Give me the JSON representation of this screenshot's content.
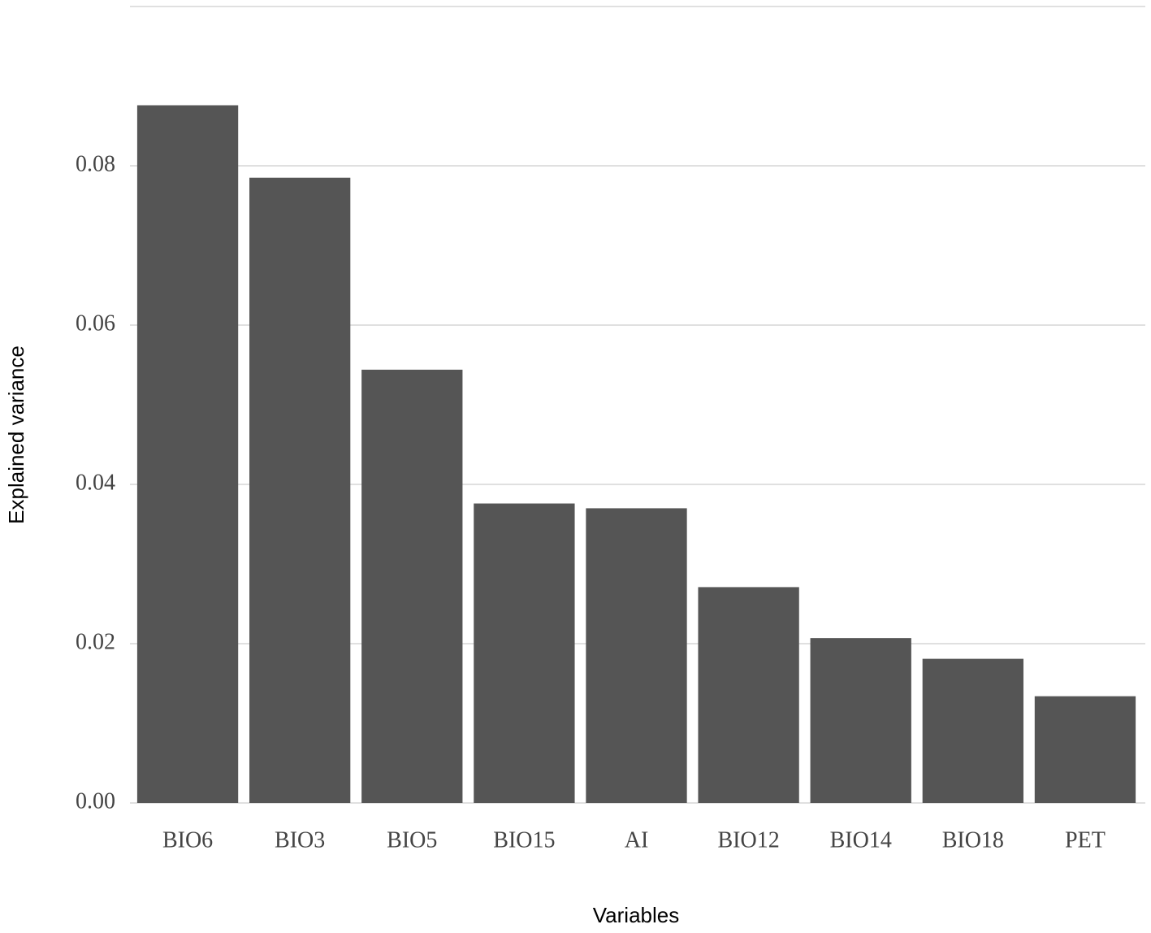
{
  "chart_data": {
    "type": "bar",
    "x_label": "Variables",
    "y_label": "Explained variance",
    "categories": [
      "BIO6",
      "BIO3",
      "BIO5",
      "BIO15",
      "AI",
      "BIO12",
      "BIO14",
      "BIO18",
      "PET"
    ],
    "values": [
      0.0876,
      0.0785,
      0.0544,
      0.0376,
      0.037,
      0.0271,
      0.0207,
      0.0181,
      0.0134
    ],
    "color": "#555555",
    "ylim": [
      0,
      0.1
    ],
    "yticks": [
      {
        "value": 0,
        "label": "0.00"
      },
      {
        "value": 0.02,
        "label": "0.02"
      },
      {
        "value": 0.04,
        "label": "0.04"
      },
      {
        "value": 0.06,
        "label": "0.06"
      },
      {
        "value": 0.08,
        "label": "0.08"
      }
    ],
    "grid": true
  }
}
